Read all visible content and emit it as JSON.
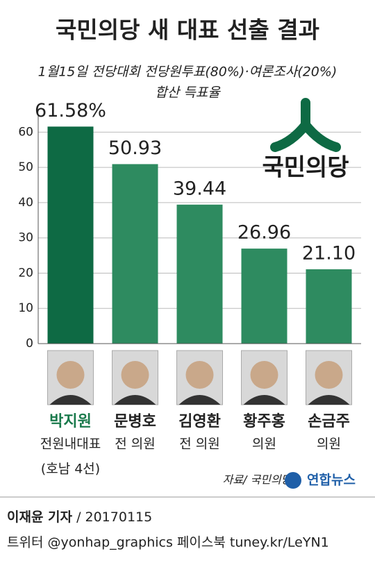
{
  "chart_data": {
    "type": "bar",
    "title": "국민의당 새 대표 선출 결과",
    "subtitle": "1월15일 전당대회 전당원투표(80%)·여론조사(20%)",
    "ylabel": "합산 득표율",
    "categories": [
      "박지원",
      "문병호",
      "김영환",
      "황주홍",
      "손금주"
    ],
    "notes": [
      [
        "전원내대표",
        "(호남 4선)"
      ],
      [
        "전 의원"
      ],
      [
        "전 의원"
      ],
      [
        "의원"
      ],
      [
        "의원"
      ]
    ],
    "values": [
      61.58,
      50.93,
      39.44,
      26.96,
      21.1
    ],
    "value_labels": [
      "61.58%",
      "50.93",
      "39.44",
      "26.96",
      "21.10"
    ],
    "colors": [
      "#0e6a44",
      "#2e8b60",
      "#2e8b60",
      "#2e8b60",
      "#2e8b60"
    ],
    "name_colors": [
      "#1a7a4c",
      "#222222",
      "#222222",
      "#222222",
      "#222222"
    ],
    "ylim": [
      0,
      65
    ],
    "yticks": [
      0,
      10,
      20,
      30,
      40,
      50,
      60
    ],
    "grid": true,
    "source": "자료/ 국민의당"
  },
  "logo": "국민의당",
  "agency": "연합뉴스",
  "footer": {
    "reporter": "이재윤 기자",
    "date": "/ 20170115",
    "social": "트위터 @yonhap_graphics  페이스북 tuney.kr/LeYN1"
  }
}
